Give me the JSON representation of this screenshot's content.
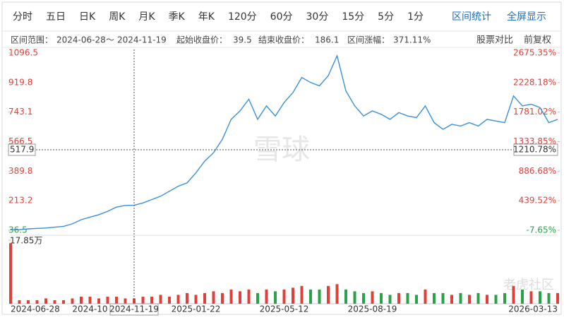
{
  "toolbar": {
    "periods": [
      "分时",
      "五日",
      "日K",
      "周K",
      "月K",
      "季K",
      "年K",
      "120分",
      "60分",
      "30分",
      "15分",
      "5分",
      "1分"
    ],
    "actions": [
      "区间统计",
      "全屏显示"
    ]
  },
  "range_bar": {
    "range_label": "区间范围：",
    "range_start": "2024-06-28",
    "range_sep": "～",
    "range_end": "2024-11-19",
    "start_label": "起始收盘价：",
    "start_close": 39.5,
    "end_label": "结束收盘价：",
    "end_close": 186.1,
    "gain_label": "区间涨幅：",
    "gain": {
      "value": 371.11,
      "label": "371.11%"
    },
    "tools": [
      "股票对比",
      "前复权"
    ]
  },
  "watermarks": [
    "雪球",
    "老虎社区"
  ],
  "chart_data": {
    "type": "line",
    "grid": false,
    "up_color": "#e0403a",
    "down_color": "#2aa24a",
    "categories": [
      "2024-06-28",
      null,
      null,
      null,
      null,
      null,
      null,
      null,
      null,
      "2024-10",
      null,
      null,
      null,
      null,
      "2024-11-19",
      null,
      null,
      null,
      null,
      null,
      null,
      "2025-01-22",
      null,
      null,
      null,
      null,
      null,
      null,
      null,
      null,
      null,
      "2025-05-12",
      null,
      null,
      null,
      null,
      null,
      null,
      null,
      null,
      null,
      "2025-08-19",
      null,
      null,
      null,
      null,
      null,
      null,
      null,
      null,
      null,
      null,
      null,
      null,
      null,
      null,
      null,
      null,
      null,
      null,
      null,
      null,
      "2026-03-13"
    ],
    "series": [
      {
        "color": "#3a8fd8",
        "values": [
          40,
          40,
          45,
          48,
          50,
          55,
          60,
          75,
          100,
          115,
          130,
          150,
          175,
          185,
          186.1,
          200,
          220,
          240,
          270,
          300,
          320,
          380,
          450,
          500,
          580,
          700,
          750,
          820,
          700,
          780,
          720,
          800,
          860,
          950,
          920,
          900,
          960,
          1080,
          870,
          780,
          720,
          750,
          730,
          700,
          740,
          720,
          710,
          780,
          680,
          640,
          670,
          660,
          680,
          660,
          700,
          690,
          680,
          840,
          780,
          790,
          770,
          680,
          700
        ]
      }
    ],
    "ylim": [
      36.5,
      1096.5
    ],
    "yticks": [
      36.5,
      213.2,
      389.8,
      566.5,
      743.1,
      919.8,
      1096.5
    ],
    "y2lim": [
      -7.65,
      2675.35
    ],
    "y2ticks": [
      {
        "value": -7.65,
        "label": "-7.65%"
      },
      {
        "value": 439.52,
        "label": "439.52%"
      },
      {
        "value": 886.68,
        "label": "886.68%"
      },
      {
        "value": 1333.85,
        "label": "1333.85%"
      },
      {
        "value": 1781.02,
        "label": "1781.02%"
      },
      {
        "value": 2228.18,
        "label": "2228.18%"
      },
      {
        "value": 2675.35,
        "label": "2675.35%"
      }
    ],
    "crosshair": {
      "date": "2024-11-19",
      "y": 517.9,
      "y2": {
        "value": 1210.78,
        "label": "1210.78%"
      }
    },
    "volume": {
      "ylim": [
        0,
        17.85
      ],
      "yticks": [
        {
          "value": 17.85,
          "label": "17.85万"
        }
      ],
      "values": [
        17,
        1,
        1,
        1,
        1.5,
        1,
        1,
        1.5,
        2,
        2,
        1.5,
        2,
        2,
        1.5,
        1.5,
        2,
        2,
        2.5,
        2,
        2.5,
        3,
        2.5,
        3,
        3.5,
        3,
        4,
        3.5,
        4,
        3,
        4,
        3.5,
        4,
        4.5,
        5,
        4,
        4,
        5,
        5.5,
        4,
        3.5,
        3,
        3.5,
        3,
        2.5,
        3,
        3,
        2.5,
        4,
        3,
        3,
        2.5,
        3,
        2.5,
        3,
        2.5,
        2.5,
        3,
        5,
        4,
        3.5,
        3.5,
        3,
        3
      ]
    }
  }
}
